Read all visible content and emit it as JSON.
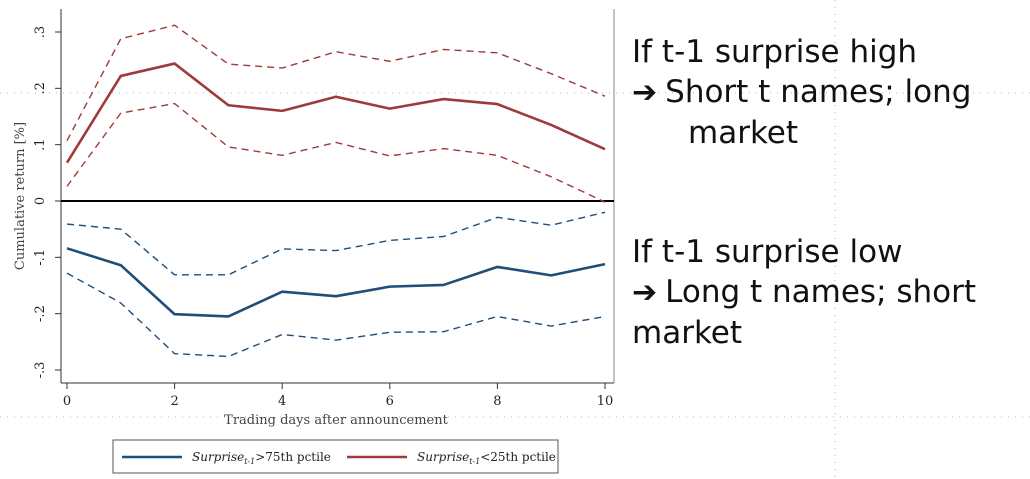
{
  "slide": {
    "block1": {
      "line1": "If t-1 surprise high",
      "arrow": "➔",
      "line2": "Short t names; long",
      "line3": "market"
    },
    "block2": {
      "line1": "If t-1 surprise low",
      "arrow": "➔",
      "line2": "Long t names; short",
      "line3": "market"
    }
  },
  "chart_data": {
    "type": "line",
    "xlabel": "Trading days after announcement",
    "ylabel": "Cumulative return [%]",
    "xlim": [
      0,
      10
    ],
    "ylim": [
      -0.3,
      0.3
    ],
    "x_ticks": [
      0,
      2,
      4,
      6,
      8,
      10
    ],
    "y_ticks": [
      -0.3,
      -0.2,
      -0.1,
      0,
      0.1,
      0.2,
      0.3
    ],
    "y_tick_labels": [
      "-.3",
      "-.2",
      "-.1",
      "0",
      ".1",
      ".2",
      ".3"
    ],
    "x": [
      0,
      1,
      2,
      3,
      4,
      5,
      6,
      7,
      8,
      9,
      10
    ],
    "colors": {
      "high": "#9e3a3a",
      "low": "#1f4e79"
    },
    "series": [
      {
        "key": "red_mean",
        "style": "solid",
        "color": "#9e3a3a",
        "values": [
          0.068,
          0.222,
          0.244,
          0.17,
          0.16,
          0.185,
          0.164,
          0.181,
          0.172,
          0.135,
          0.092
        ]
      },
      {
        "key": "red_upper",
        "style": "dashed",
        "color": "#9e3a3a",
        "values": [
          0.107,
          0.288,
          0.312,
          0.243,
          0.236,
          0.265,
          0.248,
          0.269,
          0.263,
          0.226,
          0.186
        ]
      },
      {
        "key": "red_lower",
        "style": "dashed",
        "color": "#9e3a3a",
        "values": [
          0.026,
          0.156,
          0.173,
          0.096,
          0.081,
          0.104,
          0.08,
          0.093,
          0.081,
          0.043,
          -0.002
        ]
      },
      {
        "key": "blue_mean",
        "style": "solid",
        "color": "#1f4e79",
        "values": [
          -0.084,
          -0.114,
          -0.201,
          -0.205,
          -0.161,
          -0.169,
          -0.152,
          -0.149,
          -0.117,
          -0.132,
          -0.112
        ]
      },
      {
        "key": "blue_upper",
        "style": "dashed",
        "color": "#1f4e79",
        "values": [
          -0.041,
          -0.05,
          -0.131,
          -0.131,
          -0.085,
          -0.088,
          -0.07,
          -0.063,
          -0.029,
          -0.043,
          -0.02
        ]
      },
      {
        "key": "blue_lower",
        "style": "dashed",
        "color": "#1f4e79",
        "values": [
          -0.128,
          -0.181,
          -0.271,
          -0.276,
          -0.237,
          -0.247,
          -0.233,
          -0.232,
          -0.205,
          -0.222,
          -0.205
        ]
      }
    ],
    "legend": {
      "placement": "bottom",
      "entries": [
        {
          "series_key": "blue_mean",
          "label_main": "Surprise",
          "label_sub": "t-1",
          "label_rest": ">75th pctile",
          "color": "#1f4e79"
        },
        {
          "series_key": "red_mean",
          "label_main": "Surprise",
          "label_sub": "t-1",
          "label_rest": "<25th pctile",
          "color": "#9e3a3a"
        }
      ]
    }
  }
}
